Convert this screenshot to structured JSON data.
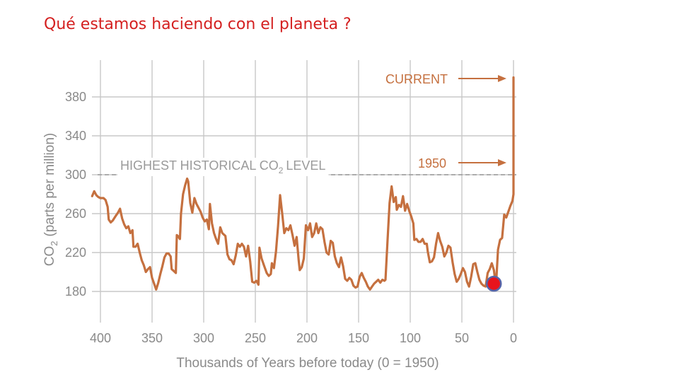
{
  "slide": {
    "title": "Qué estamos haciendo con el planeta ?"
  },
  "colors": {
    "title": "#d42020",
    "series": "#c5703f",
    "grid": "#c8c8c8",
    "axis_text": "#8a8a8a",
    "marker_fill": "#e8141c",
    "marker_stroke": "#5566aa"
  },
  "chart_data": {
    "type": "line",
    "title": "",
    "xlabel": "Thousands of Years before today (0 = 1950)",
    "ylabel_main": "CO",
    "ylabel_sub": "2",
    "ylabel_rest": "(parts per million)",
    "xlim": [
      400,
      0
    ],
    "ylim": [
      150,
      405
    ],
    "x_ticks": [
      400,
      350,
      300,
      250,
      200,
      150,
      100,
      50,
      0
    ],
    "y_ticks": [
      180,
      220,
      260,
      300,
      340,
      380
    ],
    "reference_line": {
      "value": 300,
      "label_main": "HIGHEST HISTORICAL CO",
      "label_sub": "2",
      "label_rest": "LEVEL"
    },
    "annotations": [
      {
        "text": "CURRENT",
        "x": 0,
        "y": 400
      },
      {
        "text": "1950",
        "x": 0,
        "y": 311
      }
    ],
    "marker": {
      "x": 19,
      "y": 188
    },
    "series": [
      {
        "name": "CO2",
        "points": [
          [
            408,
            278
          ],
          [
            406,
            283
          ],
          [
            404,
            279
          ],
          [
            402,
            277
          ],
          [
            400,
            276
          ],
          [
            397,
            276
          ],
          [
            395,
            274
          ],
          [
            393,
            267
          ],
          [
            392,
            254
          ],
          [
            390,
            251
          ],
          [
            388,
            253
          ],
          [
            385,
            258
          ],
          [
            383,
            261
          ],
          [
            381,
            265
          ],
          [
            379,
            255
          ],
          [
            377,
            249
          ],
          [
            375,
            245
          ],
          [
            373,
            247
          ],
          [
            371,
            240
          ],
          [
            369,
            243
          ],
          [
            368,
            226
          ],
          [
            366,
            226
          ],
          [
            364,
            229
          ],
          [
            362,
            220
          ],
          [
            360,
            212
          ],
          [
            358,
            207
          ],
          [
            356,
            200
          ],
          [
            354,
            203
          ],
          [
            352,
            205
          ],
          [
            350,
            194
          ],
          [
            348,
            188
          ],
          [
            346,
            182
          ],
          [
            344,
            189
          ],
          [
            342,
            198
          ],
          [
            340,
            206
          ],
          [
            338,
            215
          ],
          [
            336,
            219
          ],
          [
            334,
            219
          ],
          [
            332,
            216
          ],
          [
            331,
            203
          ],
          [
            329,
            201
          ],
          [
            327,
            199
          ],
          [
            326,
            238
          ],
          [
            325,
            237
          ],
          [
            323,
            234
          ],
          [
            322,
            260
          ],
          [
            320,
            280
          ],
          [
            318,
            289
          ],
          [
            316,
            296
          ],
          [
            315,
            293
          ],
          [
            313,
            271
          ],
          [
            311,
            261
          ],
          [
            309,
            276
          ],
          [
            307,
            270
          ],
          [
            305,
            266
          ],
          [
            303,
            262
          ],
          [
            301,
            256
          ],
          [
            299,
            252
          ],
          [
            297,
            254
          ],
          [
            295,
            244
          ],
          [
            294,
            270
          ],
          [
            292,
            250
          ],
          [
            290,
            240
          ],
          [
            288,
            234
          ],
          [
            286,
            229
          ],
          [
            284,
            246
          ],
          [
            282,
            240
          ],
          [
            279,
            237
          ],
          [
            277,
            218
          ],
          [
            275,
            213
          ],
          [
            273,
            212
          ],
          [
            271,
            208
          ],
          [
            269,
            217
          ],
          [
            267,
            229
          ],
          [
            265,
            226
          ],
          [
            263,
            229
          ],
          [
            261,
            226
          ],
          [
            259,
            216
          ],
          [
            257,
            227
          ],
          [
            255,
            211
          ],
          [
            253,
            190
          ],
          [
            251,
            189
          ],
          [
            249,
            191
          ],
          [
            247,
            187
          ],
          [
            246,
            225
          ],
          [
            244,
            214
          ],
          [
            241,
            205
          ],
          [
            239,
            199
          ],
          [
            237,
            196
          ],
          [
            235,
            198
          ],
          [
            234,
            209
          ],
          [
            232,
            204
          ],
          [
            230,
            221
          ],
          [
            228,
            247
          ],
          [
            226,
            279
          ],
          [
            224,
            260
          ],
          [
            222,
            240
          ],
          [
            220,
            245
          ],
          [
            218,
            243
          ],
          [
            216,
            248
          ],
          [
            214,
            238
          ],
          [
            212,
            227
          ],
          [
            210,
            236
          ],
          [
            208,
            212
          ],
          [
            207,
            202
          ],
          [
            205,
            205
          ],
          [
            203,
            214
          ],
          [
            201,
            248
          ],
          [
            199,
            243
          ],
          [
            197,
            250
          ],
          [
            195,
            236
          ],
          [
            193,
            240
          ],
          [
            191,
            250
          ],
          [
            189,
            240
          ],
          [
            187,
            246
          ],
          [
            185,
            244
          ],
          [
            183,
            231
          ],
          [
            181,
            220
          ],
          [
            179,
            218
          ],
          [
            177,
            232
          ],
          [
            175,
            230
          ],
          [
            173,
            216
          ],
          [
            171,
            209
          ],
          [
            169,
            205
          ],
          [
            167,
            215
          ],
          [
            165,
            206
          ],
          [
            163,
            193
          ],
          [
            161,
            191
          ],
          [
            159,
            194
          ],
          [
            157,
            192
          ],
          [
            155,
            186
          ],
          [
            153,
            184
          ],
          [
            151,
            185
          ],
          [
            149,
            195
          ],
          [
            147,
            199
          ],
          [
            145,
            194
          ],
          [
            143,
            190
          ],
          [
            141,
            185
          ],
          [
            139,
            182
          ],
          [
            137,
            185
          ],
          [
            135,
            188
          ],
          [
            133,
            190
          ],
          [
            131,
            192
          ],
          [
            129,
            189
          ],
          [
            127,
            192
          ],
          [
            125,
            191
          ],
          [
            124,
            192
          ],
          [
            122,
            232
          ],
          [
            120,
            271
          ],
          [
            118,
            288
          ],
          [
            116,
            272
          ],
          [
            114,
            277
          ],
          [
            113,
            264
          ],
          [
            111,
            269
          ],
          [
            109,
            267
          ],
          [
            107,
            278
          ],
          [
            105,
            263
          ],
          [
            103,
            270
          ],
          [
            101,
            263
          ],
          [
            99,
            257
          ],
          [
            97,
            250
          ],
          [
            96,
            233
          ],
          [
            94,
            234
          ],
          [
            92,
            231
          ],
          [
            90,
            231
          ],
          [
            88,
            234
          ],
          [
            86,
            229
          ],
          [
            84,
            229
          ],
          [
            83,
            221
          ],
          [
            81,
            210
          ],
          [
            79,
            211
          ],
          [
            77,
            215
          ],
          [
            75,
            229
          ],
          [
            73,
            240
          ],
          [
            71,
            232
          ],
          [
            69,
            226
          ],
          [
            67,
            216
          ],
          [
            65,
            220
          ],
          [
            63,
            227
          ],
          [
            61,
            225
          ],
          [
            59,
            210
          ],
          [
            57,
            198
          ],
          [
            55,
            190
          ],
          [
            53,
            193
          ],
          [
            51,
            198
          ],
          [
            49,
            204
          ],
          [
            47,
            200
          ],
          [
            45,
            190
          ],
          [
            43,
            185
          ],
          [
            41,
            195
          ],
          [
            39,
            208
          ],
          [
            37,
            209
          ],
          [
            35,
            200
          ],
          [
            33,
            192
          ],
          [
            31,
            188
          ],
          [
            29,
            186
          ],
          [
            27,
            185
          ],
          [
            25,
            199
          ],
          [
            23,
            203
          ],
          [
            21,
            209
          ],
          [
            19,
            202
          ],
          [
            17,
            185
          ],
          [
            15,
            223
          ],
          [
            13,
            233
          ],
          [
            11,
            235
          ],
          [
            9,
            259
          ],
          [
            7,
            256
          ],
          [
            5,
            262
          ],
          [
            3,
            268
          ],
          [
            1,
            273
          ],
          [
            0,
            280
          ],
          [
            0,
            295
          ],
          [
            0,
            310
          ],
          [
            0,
            400
          ]
        ]
      }
    ]
  }
}
